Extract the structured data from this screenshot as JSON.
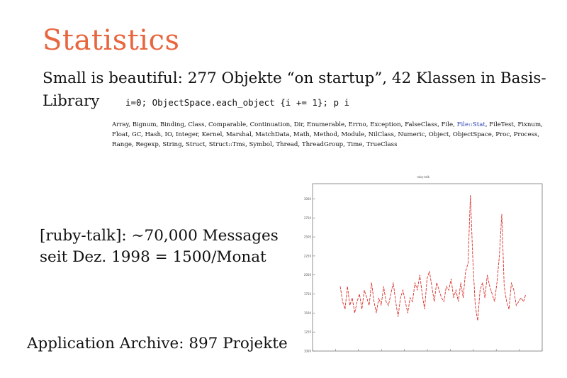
{
  "slide": {
    "title": "Statistics",
    "line1": "Small is beautiful: 277 Objekte “on startup”, 42 Klassen in Basis-",
    "line2": "Library",
    "code": "i=0; ObjectSpace.each_object {i += 1}; p i",
    "classes_before": "Array, Bignum, Binding, Class, Comparable, Continuation, Dir, Enumerable, Errno, Exception, FalseClass, File, ",
    "classes_highlight": "File::Stat",
    "classes_after": ", FileTest, Fixnum, Float, GC, Hash, IO, Integer, Kernel, Marshal, MatchData, Math, Method, Module, NilClass, Numeric, Object, ObjectSpace, Proc, Process, Range, Regexp, String, Struct, Struct::Tms, Symbol, Thread, ThreadGroup, Time, TrueClass",
    "talk_line1": "[ruby-talk]: ∼70,000 Messages",
    "talk_line2": "seit Dez. 1998 = 1500/Monat",
    "archive": "Application Archive: 897 Projekte"
  },
  "colors": {
    "title": "#e8663f",
    "series": "#d9302a",
    "link": "#2a3fb3"
  },
  "chart_data": {
    "type": "line",
    "title": "ruby-talk",
    "ylim": [
      1000,
      3200
    ],
    "yticks": [
      1000,
      1250,
      1500,
      1750,
      2000,
      2250,
      2500,
      2750,
      3000
    ],
    "grid": false,
    "series": [
      {
        "values": [
          1850,
          1650,
          1550,
          1850,
          1600,
          1700,
          1500,
          1650,
          1750,
          1550,
          1800,
          1700,
          1600,
          1900,
          1650,
          1500,
          1700,
          1600,
          1850,
          1650,
          1600,
          1750,
          1900,
          1650,
          1450,
          1700,
          1800,
          1650,
          1500,
          1700,
          1650,
          1900,
          1800,
          2000,
          1750,
          1550,
          1950,
          2050,
          1850,
          1650,
          1900,
          1800,
          1700,
          1650,
          1850,
          1800,
          1950,
          1700,
          1800,
          1650,
          1900,
          1700,
          2050,
          2150,
          3050,
          2200,
          1600,
          1400,
          1800,
          1900,
          1700,
          2000,
          1850,
          1750,
          1650,
          1900,
          2250,
          2800,
          1850,
          1650,
          1550,
          1900,
          1800,
          1600,
          1650,
          1700,
          1650,
          1750
        ]
      }
    ]
  }
}
